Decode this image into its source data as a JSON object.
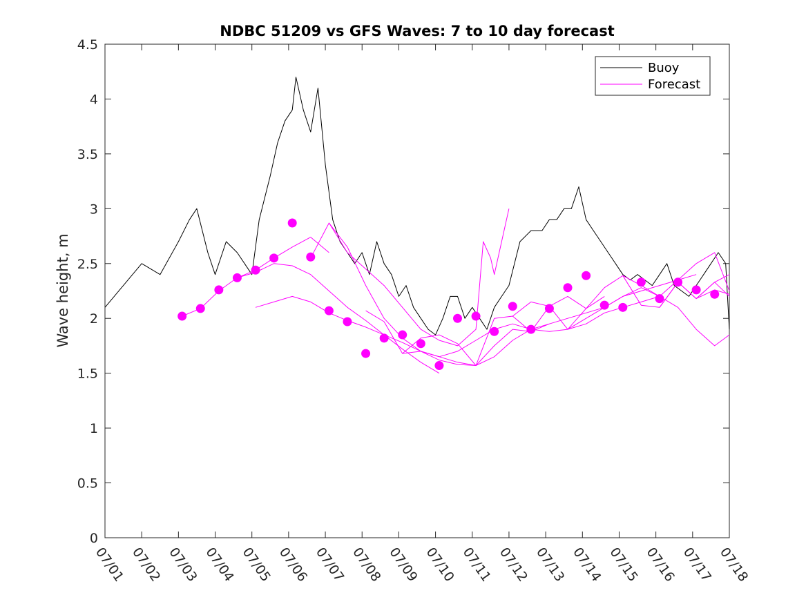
{
  "chart_data": {
    "type": "line",
    "title": "NDBC 51209 vs GFS Waves: 7 to 10 day forecast",
    "xlabel": "",
    "ylabel": "Wave height, m",
    "xlim": [
      0,
      17
    ],
    "ylim": [
      0,
      4.5
    ],
    "x_ticks": [
      "07/01",
      "07/02",
      "07/03",
      "07/04",
      "07/05",
      "07/06",
      "07/07",
      "07/08",
      "07/09",
      "07/10",
      "07/11",
      "07/12",
      "07/13",
      "07/14",
      "07/15",
      "07/16",
      "07/17",
      "07/18"
    ],
    "y_ticks": [
      "0",
      "0.5",
      "1",
      "1.5",
      "2",
      "2.5",
      "3",
      "3.5",
      "4",
      "4.5"
    ],
    "legend": {
      "placement": "top-right",
      "entries": [
        "Buoy",
        "Forecast"
      ]
    },
    "colors": {
      "buoy": "#000000",
      "forecast": "#ff00ff"
    },
    "series": [
      {
        "name": "Buoy",
        "x": [
          0,
          0.5,
          1,
          1.5,
          2,
          2.3,
          2.5,
          2.8,
          3,
          3.3,
          3.6,
          3.8,
          4,
          4.2,
          4.5,
          4.7,
          4.9,
          5.1,
          5.2,
          5.4,
          5.6,
          5.8,
          6,
          6.2,
          6.4,
          6.6,
          6.8,
          7,
          7.2,
          7.4,
          7.6,
          7.8,
          8,
          8.2,
          8.4,
          8.6,
          8.8,
          9,
          9.2,
          9.4,
          9.6,
          9.8,
          10,
          10.2,
          10.4,
          10.6,
          10.8,
          11,
          11.3,
          11.6,
          11.9,
          12.1,
          12.3,
          12.5,
          12.7,
          12.9,
          13.1,
          13.3,
          13.5,
          13.7,
          13.9,
          14.1,
          14.3,
          14.5,
          14.7,
          14.9,
          15.1,
          15.3,
          15.5,
          15.7,
          15.9,
          16.1,
          16.3,
          16.5,
          16.7,
          16.9,
          17
        ],
        "y": [
          2.1,
          2.3,
          2.5,
          2.4,
          2.7,
          2.9,
          3.0,
          2.6,
          2.4,
          2.7,
          2.6,
          2.5,
          2.4,
          2.9,
          3.3,
          3.6,
          3.8,
          3.9,
          4.2,
          3.9,
          3.7,
          4.1,
          3.4,
          2.9,
          2.7,
          2.6,
          2.5,
          2.6,
          2.4,
          2.7,
          2.5,
          2.4,
          2.2,
          2.3,
          2.1,
          2.0,
          1.9,
          1.85,
          2.0,
          2.2,
          2.2,
          2.0,
          2.1,
          2.0,
          1.9,
          2.1,
          2.2,
          2.3,
          2.7,
          2.8,
          2.8,
          2.9,
          2.9,
          3.0,
          3.0,
          3.2,
          2.9,
          2.8,
          2.7,
          2.6,
          2.5,
          2.4,
          2.35,
          2.4,
          2.35,
          2.3,
          2.4,
          2.5,
          2.3,
          2.25,
          2.2,
          2.3,
          2.4,
          2.5,
          2.6,
          2.5,
          1.9
        ]
      },
      {
        "name": "Forecast",
        "x": [
          2.1,
          2.6,
          3.1,
          3.6,
          4.1,
          4.6,
          5.1,
          5.6,
          6.1
        ],
        "y": [
          2.02,
          2.09,
          2.25,
          2.37,
          2.44,
          2.55,
          2.65,
          2.74,
          2.6
        ]
      },
      {
        "name": "Forecast",
        "x": [
          3.6,
          4.1,
          4.6,
          5.1,
          5.6,
          6.1,
          6.6,
          7.1,
          7.6,
          8.1,
          8.6,
          9.1
        ],
        "y": [
          2.37,
          2.42,
          2.5,
          2.48,
          2.4,
          2.25,
          2.1,
          1.98,
          1.85,
          1.72,
          1.6,
          1.5
        ]
      },
      {
        "name": "Forecast",
        "x": [
          4.1,
          4.6,
          5.1,
          5.6,
          6.1,
          6.6,
          7.1,
          7.6,
          8.1,
          8.6,
          9.1,
          9.6,
          10.1
        ],
        "y": [
          2.1,
          2.15,
          2.2,
          2.15,
          2.05,
          1.98,
          1.92,
          1.85,
          1.78,
          1.7,
          1.62,
          1.58,
          1.57
        ]
      },
      {
        "name": "Forecast",
        "x": [
          5.6,
          6.1,
          6.6,
          7.1,
          7.6,
          8.1,
          8.6,
          9.1,
          9.6,
          10.1,
          10.6,
          11.1,
          11.6,
          12.1
        ],
        "y": [
          2.55,
          2.87,
          2.65,
          2.3,
          2.0,
          1.82,
          1.7,
          1.65,
          1.6,
          1.57,
          1.65,
          1.8,
          1.9,
          1.95
        ]
      },
      {
        "name": "Forecast",
        "x": [
          6.1,
          6.6,
          7.1,
          7.6,
          8.1,
          8.6,
          9.1,
          9.6,
          10.1,
          10.3,
          10.5,
          10.6,
          10.8,
          11.0
        ],
        "y": [
          2.87,
          2.6,
          2.45,
          2.3,
          2.1,
          1.9,
          1.8,
          1.75,
          1.9,
          2.7,
          2.55,
          2.4,
          2.7,
          3.0
        ]
      },
      {
        "name": "Forecast",
        "x": [
          7.1,
          7.6,
          8.1,
          8.6,
          9.1,
          9.6,
          10.1,
          10.6,
          11.1,
          11.6,
          12.1,
          12.6,
          13.1,
          13.6
        ],
        "y": [
          2.07,
          1.97,
          1.68,
          1.82,
          1.85,
          1.77,
          1.57,
          2.0,
          2.02,
          1.88,
          2.11,
          1.9,
          2.09,
          2.2
        ]
      },
      {
        "name": "Forecast",
        "x": [
          8.1,
          8.6,
          9.1,
          9.6,
          10.1,
          10.6,
          11.1,
          11.6,
          12.1,
          12.6,
          13.1,
          13.6,
          14.1,
          14.6,
          15.1
        ],
        "y": [
          1.68,
          1.7,
          1.65,
          1.7,
          1.8,
          1.9,
          1.95,
          1.9,
          1.88,
          1.9,
          1.95,
          2.05,
          2.1,
          2.15,
          2.2
        ]
      },
      {
        "name": "Forecast",
        "x": [
          10.1,
          10.6,
          11.1,
          11.6,
          12.1,
          12.6,
          13.1,
          13.6,
          14.1,
          14.6,
          15.1,
          15.6,
          16.1
        ],
        "y": [
          1.57,
          1.75,
          1.9,
          1.88,
          1.95,
          2.0,
          2.05,
          2.1,
          2.2,
          2.25,
          2.3,
          2.35,
          2.4
        ]
      },
      {
        "name": "Forecast",
        "x": [
          11.1,
          11.6,
          12.1,
          12.6,
          13.1,
          13.6,
          14.1,
          14.6,
          15.1,
          15.6,
          16.1,
          16.6,
          17.0
        ],
        "y": [
          2.02,
          2.15,
          2.11,
          2.2,
          2.09,
          2.28,
          2.39,
          2.12,
          2.1,
          2.33,
          2.18,
          2.33,
          2.4
        ]
      },
      {
        "name": "Forecast",
        "x": [
          12.6,
          13.1,
          13.6,
          14.1,
          14.6,
          15.1,
          15.6,
          16.1,
          16.6,
          17.0
        ],
        "y": [
          1.9,
          2.0,
          2.1,
          2.2,
          2.28,
          2.2,
          2.1,
          1.9,
          1.75,
          1.85
        ]
      },
      {
        "name": "Forecast",
        "x": [
          14.1,
          14.6,
          15.1,
          15.6,
          16.1,
          16.6,
          17.0
        ],
        "y": [
          2.39,
          2.3,
          2.2,
          2.35,
          2.5,
          2.6,
          2.25
        ]
      },
      {
        "name": "Forecast",
        "x": [
          15.1,
          15.6,
          16.1,
          16.6,
          17.0
        ],
        "y": [
          2.1,
          2.33,
          2.18,
          2.33,
          2.2
        ]
      },
      {
        "name": "Forecast",
        "x": [
          16.1,
          16.6,
          17.0
        ],
        "y": [
          2.18,
          2.26,
          2.22
        ]
      }
    ],
    "markers": {
      "x": [
        2.1,
        2.6,
        3.1,
        3.6,
        4.1,
        4.6,
        5.1,
        5.6,
        6.1,
        6.6,
        7.1,
        7.6,
        8.1,
        8.6,
        9.1,
        9.6,
        10.1,
        10.6,
        11.1,
        11.6,
        12.1,
        12.6,
        13.1,
        13.6,
        14.1,
        14.6,
        15.1,
        15.6,
        16.1,
        16.6
      ],
      "y": [
        2.02,
        2.09,
        2.26,
        2.37,
        2.44,
        2.55,
        2.87,
        2.56,
        2.07,
        1.97,
        1.68,
        1.82,
        1.85,
        1.77,
        1.57,
        2.0,
        2.02,
        1.88,
        2.11,
        1.9,
        2.09,
        2.28,
        2.39,
        2.12,
        2.1,
        2.33,
        2.18,
        2.33,
        2.26,
        2.22
      ]
    }
  }
}
